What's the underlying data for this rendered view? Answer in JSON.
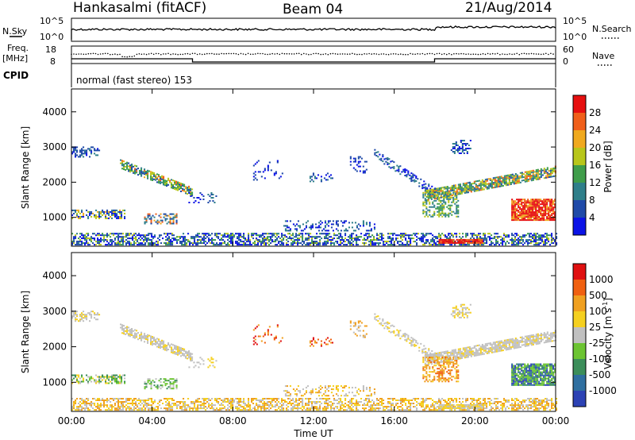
{
  "header": {
    "station": "Hankasalmi (fitACF)",
    "beam": "Beam 04",
    "date": "21/Aug/2014"
  },
  "top_panel": {
    "left_label": "N.Sky",
    "right_label": "N.Search",
    "left_ticks": [
      "10^5",
      "10^0"
    ],
    "right_ticks": [
      "10^5",
      "10^0"
    ]
  },
  "freq_panel": {
    "left_label_1": "Freq.",
    "left_label_2": "[MHz]",
    "left_ticks": [
      "18",
      "8"
    ],
    "right_label": "Nave",
    "right_ticks": [
      "60",
      "0"
    ]
  },
  "cpid": {
    "label": "CPID",
    "value": "normal (fast stereo) 153"
  },
  "colors": {
    "power": [
      "#0b13e6",
      "#1f4aa8",
      "#2f7f8a",
      "#3f9d4a",
      "#b8c61a",
      "#f0a91e",
      "#f05f1a",
      "#e60f0f"
    ],
    "velocity": [
      "#2c42b4",
      "#2f6fa0",
      "#3c8e5a",
      "#6cc432",
      "#c0c0c0",
      "#f5d020",
      "#f0a020",
      "#f06010",
      "#e01010"
    ]
  },
  "chart_data": [
    {
      "type": "heatmap",
      "quantity": "power",
      "xlabel": "",
      "ylabel": "Slant Range [km]",
      "colorbar_label": "Power [dB]",
      "colorbar_ticks": [
        "28",
        "24",
        "20",
        "16",
        "12",
        "8",
        "4"
      ],
      "xlim": [
        0,
        24
      ],
      "ylim": [
        180,
        4650
      ],
      "yticks": [
        "4000",
        "3000",
        "2000",
        "1000"
      ],
      "yticks_values": [
        4000,
        3000,
        2000,
        1000
      ],
      "xticks": [
        "00:00",
        "04:00",
        "08:00",
        "12:00",
        "16:00",
        "20:00",
        "00:00"
      ],
      "xticks_values": [
        0,
        4,
        8,
        12,
        16,
        20,
        24
      ]
    },
    {
      "type": "heatmap",
      "quantity": "velocity",
      "xlabel": "Time UT",
      "ylabel": "Slant Range [km]",
      "colorbar_label": "Velocity [m s",
      "colorbar_label_sup": "-1",
      "colorbar_label_end": "]",
      "colorbar_ticks": [
        "1000",
        "500",
        "100",
        "25",
        "-25",
        "-100",
        "-500",
        "-1000"
      ],
      "xlim": [
        0,
        24
      ],
      "ylim": [
        180,
        4650
      ],
      "yticks": [
        "4000",
        "3000",
        "2000",
        "1000"
      ],
      "yticks_values": [
        4000,
        3000,
        2000,
        1000
      ],
      "xticks": [
        "00:00",
        "04:00",
        "08:00",
        "12:00",
        "16:00",
        "20:00",
        "00:00"
      ],
      "xticks_values": [
        0,
        4,
        8,
        12,
        16,
        20,
        24
      ]
    }
  ]
}
